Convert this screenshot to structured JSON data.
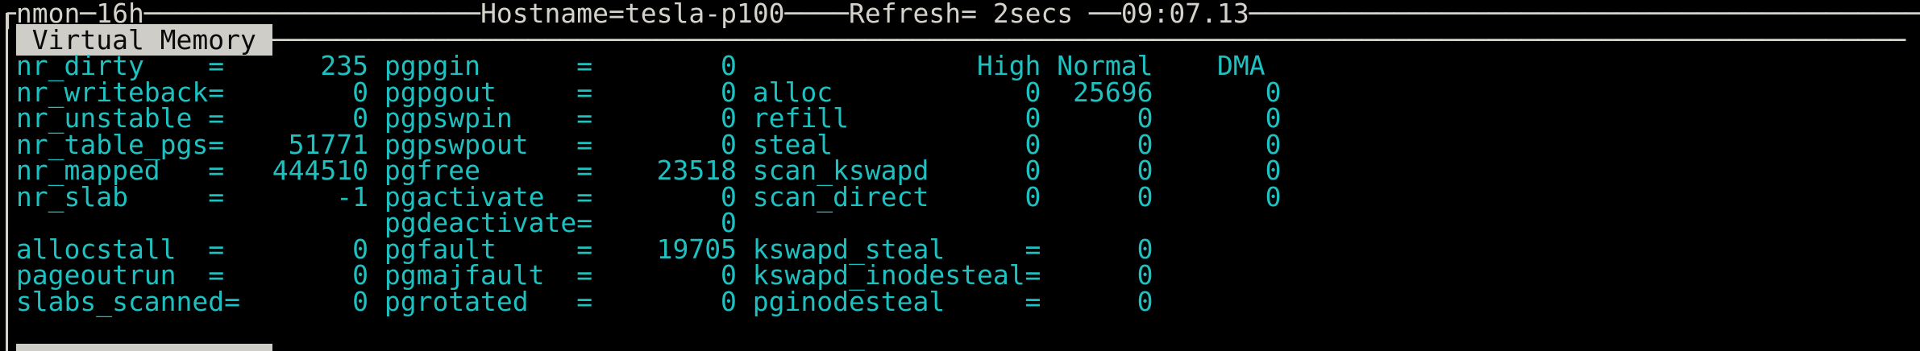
{
  "app": {
    "name": "nmon",
    "version": "16h",
    "hostname": "tesla-p100",
    "refresh": "2secs",
    "clock": "09:07.13",
    "section_title": "Virtual Memory"
  },
  "colors": {
    "background": "#000000",
    "frame_gray": "#d5d2cb",
    "stat_cyan": "#1fc0c0",
    "banner_bg": "#cfcdc7",
    "banner_fg": "#0a0a0a"
  },
  "vm_stats": {
    "counters": {
      "nr_dirty": 235,
      "nr_writeback": 0,
      "nr_unstable": 0,
      "nr_table_pgs": 51771,
      "nr_mapped": 444510,
      "nr_slab": -1,
      "allocstall": 0,
      "pageoutrun": 0,
      "slabs_scanned": 0,
      "pgpgin": 0,
      "pgpgout": 0,
      "pgpswpin": 0,
      "pgpswpout": 0,
      "pgfree": 23518,
      "pgactivate": 0,
      "pgdeactivate": 0,
      "pgfault": 19705,
      "pgmajfault": 0,
      "pgrotated": 0,
      "kswapd_steal": 0,
      "kswapd_inodesteal": 0,
      "pginodesteal": 0
    },
    "zones": {
      "columns": [
        "High",
        "Normal",
        "DMA"
      ],
      "rows": [
        [
          "alloc",
          0,
          25696,
          0
        ],
        [
          "refill",
          0,
          0,
          0
        ],
        [
          "steal",
          0,
          0,
          0
        ],
        [
          "scan_kswapd",
          0,
          0,
          0
        ],
        [
          "scan_direct",
          0,
          0,
          0
        ]
      ]
    }
  },
  "rows": [
    {
      "segments": [
        {
          "n": "frame-top-corner",
          "c": "g",
          "t": "┌"
        },
        {
          "n": "app-title",
          "c": "g",
          "t": "nmon─16h"
        },
        {
          "n": "hline",
          "c": "g",
          "r": 21
        },
        {
          "n": "hostname",
          "c": "g",
          "t": "Hostname=tesla-p100"
        },
        {
          "n": "hline",
          "c": "g",
          "r": 4
        },
        {
          "n": "refresh-rate",
          "c": "g",
          "t": "Refresh= 2secs"
        },
        {
          "n": "hline",
          "c": "g",
          "t": " ──"
        },
        {
          "n": "clock",
          "c": "g",
          "t": "09:07.13"
        },
        {
          "n": "hline",
          "c": "g",
          "r": 42
        }
      ]
    },
    {
      "segments": [
        {
          "n": "pad",
          "c": "g",
          "t": " "
        },
        {
          "n": "section-title",
          "c": "b",
          "t": " Virtual Memory "
        },
        {
          "n": "hline",
          "c": "g",
          "r": 102
        }
      ]
    },
    {
      "segments": [
        {
          "n": "stat-nr_dirty",
          "c": "c",
          "t": " nr_dirty    =      235"
        },
        {
          "n": "stat-pgpgin",
          "c": "c",
          "t": " pgpgin      =        0"
        },
        {
          "n": "zone-header",
          "c": "c",
          "t": "               High Normal    DMA"
        }
      ]
    },
    {
      "segments": [
        {
          "n": "stat-nr_writeback",
          "c": "c",
          "t": " nr_writeback=        0"
        },
        {
          "n": "stat-pgpgout",
          "c": "c",
          "t": " pgpgout     =        0"
        },
        {
          "n": "zone-alloc",
          "c": "c",
          "t": " alloc            0  25696       0"
        }
      ]
    },
    {
      "segments": [
        {
          "n": "stat-nr_unstable",
          "c": "c",
          "t": " nr_unstable =        0"
        },
        {
          "n": "stat-pgpswpin",
          "c": "c",
          "t": " pgpswpin    =        0"
        },
        {
          "n": "zone-refill",
          "c": "c",
          "t": " refill           0      0       0"
        }
      ]
    },
    {
      "segments": [
        {
          "n": "stat-nr_table_pgs",
          "c": "c",
          "t": " nr_table_pgs=    51771"
        },
        {
          "n": "stat-pgpswpout",
          "c": "c",
          "t": " pgpswpout   =        0"
        },
        {
          "n": "zone-steal",
          "c": "c",
          "t": " steal            0      0       0"
        }
      ]
    },
    {
      "segments": [
        {
          "n": "stat-nr_mapped",
          "c": "c",
          "t": " nr_mapped   =   444510"
        },
        {
          "n": "stat-pgfree",
          "c": "c",
          "t": " pgfree      =    23518"
        },
        {
          "n": "zone-scan_kswapd",
          "c": "c",
          "t": " scan_kswapd      0      0       0"
        }
      ]
    },
    {
      "segments": [
        {
          "n": "stat-nr_slab",
          "c": "c",
          "t": " nr_slab     =       -1"
        },
        {
          "n": "stat-pgactivate",
          "c": "c",
          "t": " pgactivate  =        0"
        },
        {
          "n": "zone-scan_direct",
          "c": "c",
          "t": " scan_direct      0      0       0"
        }
      ]
    },
    {
      "segments": [
        {
          "n": "pad",
          "c": "c",
          "t": "                        "
        },
        {
          "n": "stat-pgdeactivate",
          "c": "c",
          "t": "pgdeactivate=        0"
        }
      ]
    },
    {
      "segments": [
        {
          "n": "stat-allocstall",
          "c": "c",
          "t": " allocstall  =        0"
        },
        {
          "n": "stat-pgfault",
          "c": "c",
          "t": " pgfault     =    19705"
        },
        {
          "n": "stat-kswapd_steal",
          "c": "c",
          "t": " kswapd_steal     =      0"
        }
      ]
    },
    {
      "segments": [
        {
          "n": "stat-pageoutrun",
          "c": "c",
          "t": " pageoutrun  =        0"
        },
        {
          "n": "stat-pgmajfault",
          "c": "c",
          "t": " pgmajfault  =        0"
        },
        {
          "n": "stat-kswapd_inodesteal",
          "c": "c",
          "t": " kswapd_inodesteal=      0"
        }
      ]
    },
    {
      "segments": [
        {
          "n": "stat-slabs_scanned",
          "c": "c",
          "t": " slabs_scanned=       0"
        },
        {
          "n": "stat-pgrotated",
          "c": "c",
          "t": " pgrotated   =        0"
        },
        {
          "n": "stat-pginodesteal",
          "c": "c",
          "t": " pginodesteal     =      0"
        }
      ]
    },
    {
      "segments": []
    }
  ]
}
